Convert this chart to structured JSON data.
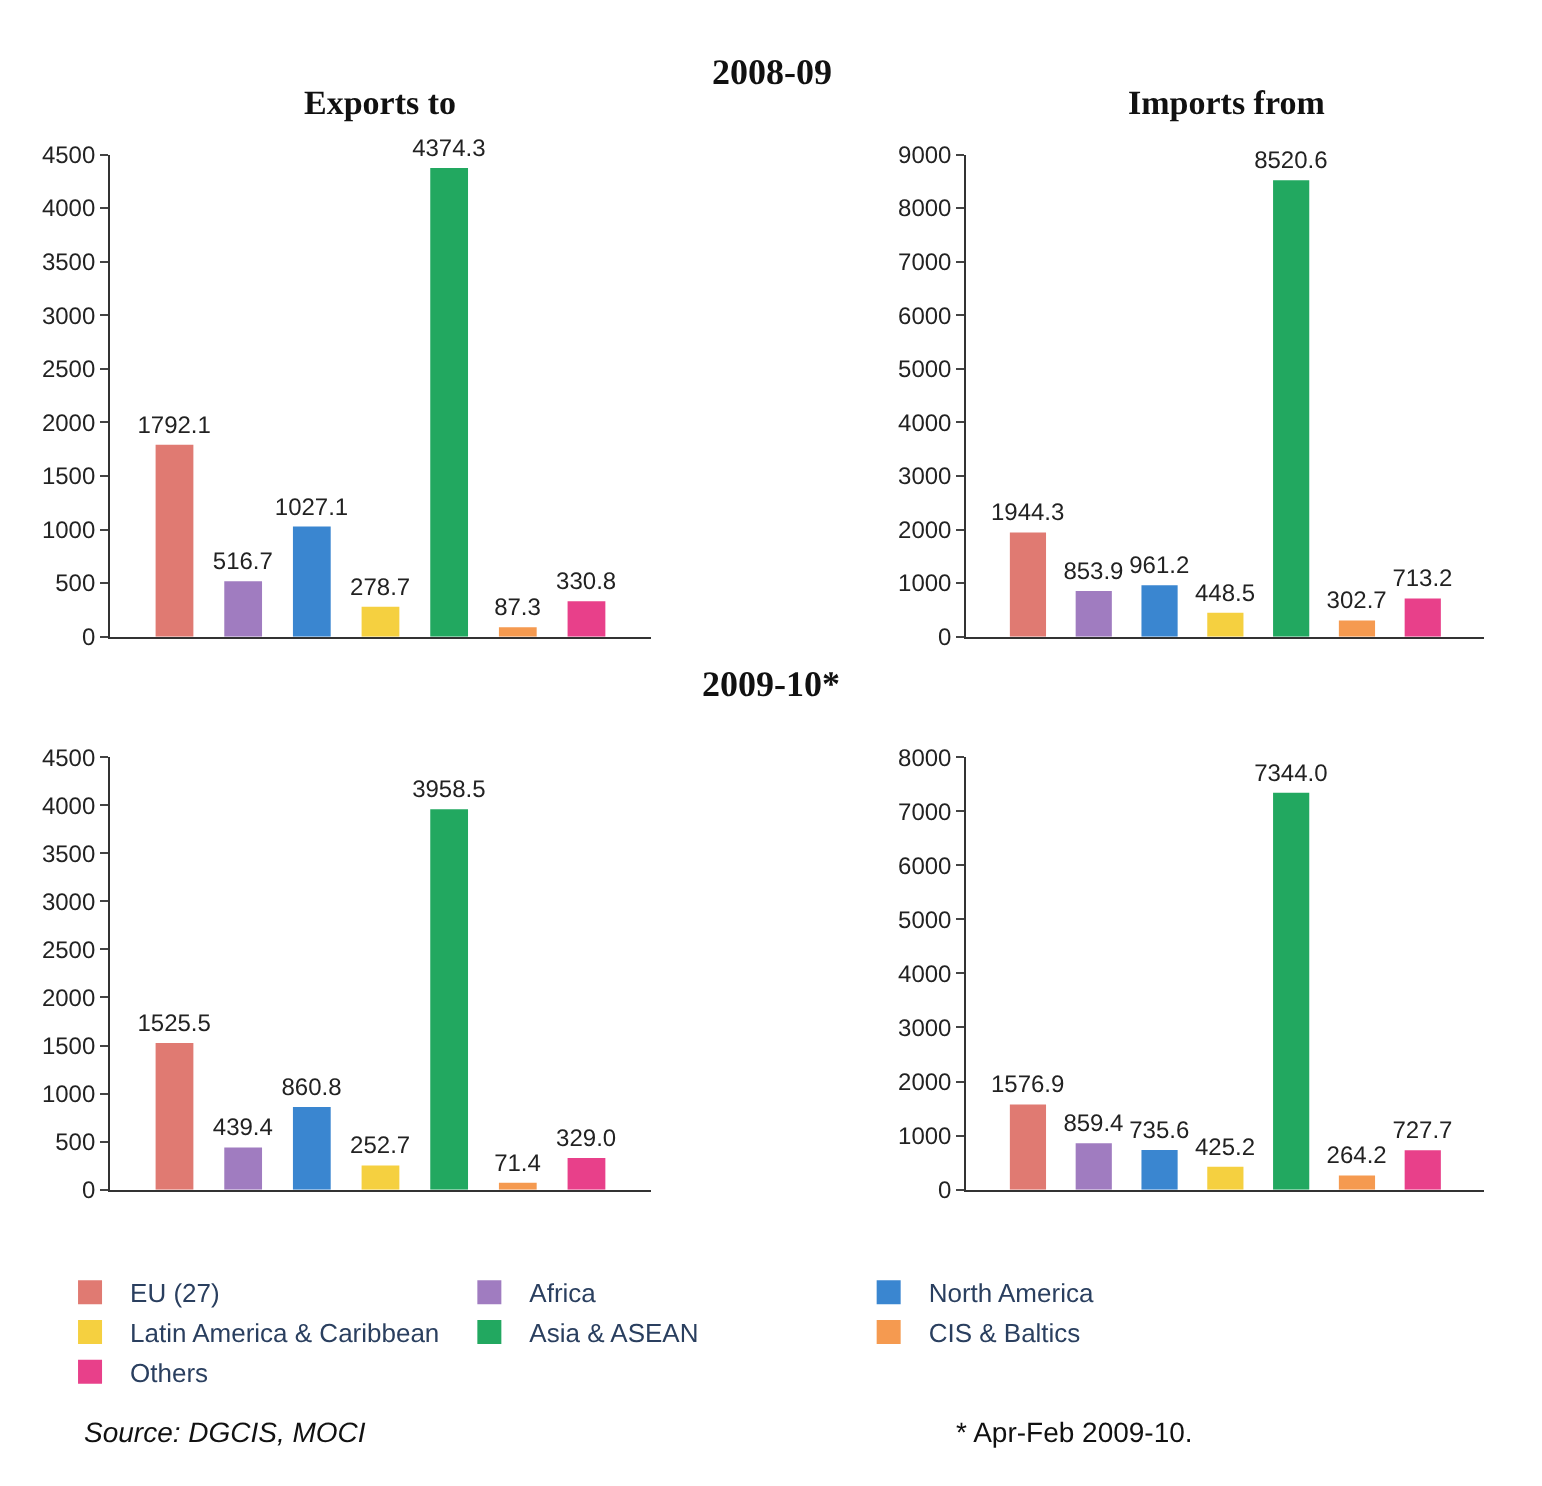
{
  "chart_data": [
    {
      "type": "bar",
      "title": "Exports to",
      "annotations": [
        "2008-09"
      ],
      "categories": [
        null
      ],
      "legend": "bottom",
      "series": [
        {
          "name": "EU (27)",
          "color": "#e07a72",
          "values": [
            1792.1
          ],
          "value_labels": [
            "1792.1"
          ]
        },
        {
          "name": "Africa",
          "color": "#a07cc0",
          "values": [
            516.7
          ],
          "value_labels": [
            "516.7"
          ]
        },
        {
          "name": "North America",
          "color": "#3a86d0",
          "values": [
            1027.1
          ],
          "value_labels": [
            "1027.1"
          ]
        },
        {
          "name": "Latin America & Caribbean",
          "color": "#f5d040",
          "values": [
            278.7
          ],
          "value_labels": [
            "278.7"
          ]
        },
        {
          "name": "Asia & ASEAN",
          "color": "#22a860",
          "values": [
            4374.3
          ],
          "value_labels": [
            "4374.3"
          ]
        },
        {
          "name": "CIS & Baltics",
          "color": "#f59a50",
          "values": [
            87.3
          ],
          "value_labels": [
            "87.3"
          ]
        },
        {
          "name": "Others",
          "color": "#e8408a",
          "values": [
            330.8
          ],
          "value_labels": [
            "330.8"
          ]
        }
      ],
      "ylim": [
        0,
        4500
      ],
      "yticks": [
        0,
        500,
        1000,
        1500,
        2000,
        2500,
        3000,
        3500,
        4000,
        4500
      ],
      "grid": false,
      "tick_labels": "y"
    },
    {
      "type": "bar",
      "title": "Imports from",
      "categories": [
        null
      ],
      "series": [
        {
          "color": "#e07a72",
          "values": [
            1944.3
          ],
          "value_labels": [
            "1944.3"
          ]
        },
        {
          "color": "#a07cc0",
          "values": [
            853.9
          ],
          "value_labels": [
            "853.9"
          ]
        },
        {
          "color": "#3a86d0",
          "values": [
            961.2
          ],
          "value_labels": [
            "961.2"
          ]
        },
        {
          "color": "#f5d040",
          "values": [
            448.5
          ],
          "value_labels": [
            "448.5"
          ]
        },
        {
          "color": "#22a860",
          "values": [
            8520.6
          ],
          "value_labels": [
            "8520.6"
          ]
        },
        {
          "color": "#f59a50",
          "values": [
            302.7
          ],
          "value_labels": [
            "302.7"
          ]
        },
        {
          "color": "#e8408a",
          "values": [
            713.2
          ],
          "value_labels": [
            "713.2"
          ]
        }
      ],
      "ylim": [
        0,
        9000
      ],
      "yticks": [
        0,
        1000,
        2000,
        3000,
        4000,
        5000,
        6000,
        7000,
        8000,
        9000
      ],
      "grid": false,
      "tick_labels": "y"
    },
    {
      "type": "bar",
      "annotations": [
        "2009-10*",
        "Source: DGCIS, MOCI"
      ],
      "categories": [
        null
      ],
      "series": [
        {
          "color": "#e07a72",
          "values": [
            1525.5
          ],
          "value_labels": [
            "1525.5"
          ]
        },
        {
          "color": "#a07cc0",
          "values": [
            439.4
          ],
          "value_labels": [
            "439.4"
          ]
        },
        {
          "color": "#3a86d0",
          "values": [
            860.8
          ],
          "value_labels": [
            "860.8"
          ]
        },
        {
          "color": "#f5d040",
          "values": [
            252.7
          ],
          "value_labels": [
            "252.7"
          ]
        },
        {
          "color": "#22a860",
          "values": [
            3958.5
          ],
          "value_labels": [
            "3958.5"
          ]
        },
        {
          "color": "#f59a50",
          "values": [
            71.4
          ],
          "value_labels": [
            "71.4"
          ]
        },
        {
          "color": "#e8408a",
          "values": [
            329.0
          ],
          "value_labels": [
            "329.0"
          ]
        }
      ],
      "ylim": [
        0,
        4500
      ],
      "yticks": [
        0,
        500,
        1000,
        1500,
        2000,
        2500,
        3000,
        3500,
        4000,
        4500
      ],
      "grid": false,
      "tick_labels": "y"
    },
    {
      "type": "bar",
      "annotations": [
        "* Apr-Feb 2009-10."
      ],
      "categories": [
        null
      ],
      "series": [
        {
          "color": "#e07a72",
          "values": [
            1576.9
          ],
          "value_labels": [
            "1576.9"
          ]
        },
        {
          "color": "#a07cc0",
          "values": [
            859.4
          ],
          "value_labels": [
            "859.4"
          ]
        },
        {
          "color": "#3a86d0",
          "values": [
            735.6
          ],
          "value_labels": [
            "735.6"
          ]
        },
        {
          "color": "#f5d040",
          "values": [
            425.2
          ],
          "value_labels": [
            "425.2"
          ]
        },
        {
          "color": "#22a860",
          "values": [
            7344.0
          ],
          "value_labels": [
            "7344.0"
          ]
        },
        {
          "color": "#f59a50",
          "values": [
            264.2
          ],
          "value_labels": [
            "264.2"
          ]
        },
        {
          "color": "#e8408a",
          "values": [
            727.7
          ],
          "value_labels": [
            "727.7"
          ]
        }
      ],
      "ylim": [
        0,
        8000
      ],
      "yticks": [
        0,
        1000,
        2000,
        3000,
        4000,
        5000,
        6000,
        7000,
        8000
      ],
      "grid": false,
      "tick_labels": "y"
    }
  ]
}
